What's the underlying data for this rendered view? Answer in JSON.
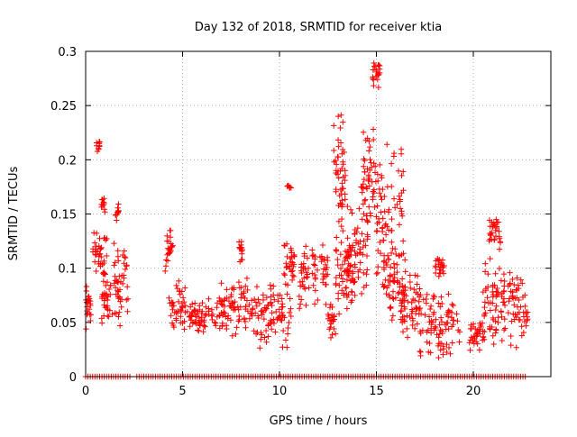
{
  "chart_data": {
    "type": "scatter",
    "title": "Day 132 of 2018, SRMTID for receiver ktia",
    "xlabel": "GPS time / hours",
    "ylabel": "SRMTID / TECUs",
    "xlim": [
      0,
      24
    ],
    "ylim": [
      0,
      0.3
    ],
    "xticks": [
      0,
      5,
      10,
      15,
      20
    ],
    "yticks": [
      0,
      0.05,
      0.1,
      0.15,
      0.2,
      0.25,
      0.3
    ],
    "grid": true,
    "marker": "+",
    "color": "#ff0000",
    "series": [
      {
        "name": "SRMTID",
        "clusters": [
          {
            "x": [
              0.0,
              0.3
            ],
            "y": [
              0.04,
              0.095
            ]
          },
          {
            "x": [
              0.3,
              1.1
            ],
            "y": [
              0.09,
              0.14
            ]
          },
          {
            "x": [
              0.55,
              0.75
            ],
            "y": [
              0.205,
              0.222
            ]
          },
          {
            "x": [
              0.8,
              1.0
            ],
            "y": [
              0.15,
              0.168
            ]
          },
          {
            "x": [
              0.8,
              1.4
            ],
            "y": [
              0.042,
              0.1
            ]
          },
          {
            "x": [
              1.4,
              2.2
            ],
            "y": [
              0.045,
              0.13
            ]
          },
          {
            "x": [
              1.5,
              1.7
            ],
            "y": [
              0.14,
              0.16
            ]
          },
          {
            "x": [
              4.1,
              4.5
            ],
            "y": [
              0.095,
              0.14
            ]
          },
          {
            "x": [
              4.3,
              5.2
            ],
            "y": [
              0.04,
              0.09
            ]
          },
          {
            "x": [
              5.2,
              7.2
            ],
            "y": [
              0.04,
              0.075
            ]
          },
          {
            "x": [
              7.0,
              8.6
            ],
            "y": [
              0.033,
              0.095
            ]
          },
          {
            "x": [
              7.9,
              8.1
            ],
            "y": [
              0.1,
              0.13
            ]
          },
          {
            "x": [
              8.6,
              10.6
            ],
            "y": [
              0.02,
              0.095
            ]
          },
          {
            "x": [
              10.2,
              10.8
            ],
            "y": [
              0.08,
              0.125
            ]
          },
          {
            "x": [
              10.4,
              10.6
            ],
            "y": [
              0.172,
              0.177
            ]
          },
          {
            "x": [
              11.0,
              12.5
            ],
            "y": [
              0.06,
              0.125
            ]
          },
          {
            "x": [
              12.5,
              12.9
            ],
            "y": [
              0.035,
              0.07
            ]
          },
          {
            "x": [
              12.8,
              13.4
            ],
            "y": [
              0.12,
              0.255
            ]
          },
          {
            "x": [
              12.9,
              13.9
            ],
            "y": [
              0.05,
              0.14
            ]
          },
          {
            "x": [
              13.4,
              14.6
            ],
            "y": [
              0.065,
              0.16
            ]
          },
          {
            "x": [
              14.2,
              15.0
            ],
            "y": [
              0.12,
              0.245
            ]
          },
          {
            "x": [
              14.8,
              15.2
            ],
            "y": [
              0.265,
              0.295
            ]
          },
          {
            "x": [
              15.0,
              16.4
            ],
            "y": [
              0.07,
              0.225
            ]
          },
          {
            "x": [
              15.3,
              16.5
            ],
            "y": [
              0.045,
              0.12
            ]
          },
          {
            "x": [
              16.3,
              17.3
            ],
            "y": [
              0.03,
              0.1
            ]
          },
          {
            "x": [
              17.2,
              19.3
            ],
            "y": [
              0.015,
              0.085
            ]
          },
          {
            "x": [
              18.0,
              18.5
            ],
            "y": [
              0.09,
              0.115
            ]
          },
          {
            "x": [
              19.8,
              20.6
            ],
            "y": [
              0.02,
              0.06
            ]
          },
          {
            "x": [
              20.4,
              21.6
            ],
            "y": [
              0.02,
              0.11
            ]
          },
          {
            "x": [
              20.8,
              21.4
            ],
            "y": [
              0.11,
              0.155
            ]
          },
          {
            "x": [
              21.5,
              22.8
            ],
            "y": [
              0.02,
              0.1
            ]
          }
        ],
        "baseline": {
          "y": 0,
          "x_from": 0,
          "x_to": 22.8,
          "gaps": [
            [
              2.4,
              2.6
            ]
          ]
        }
      }
    ]
  }
}
